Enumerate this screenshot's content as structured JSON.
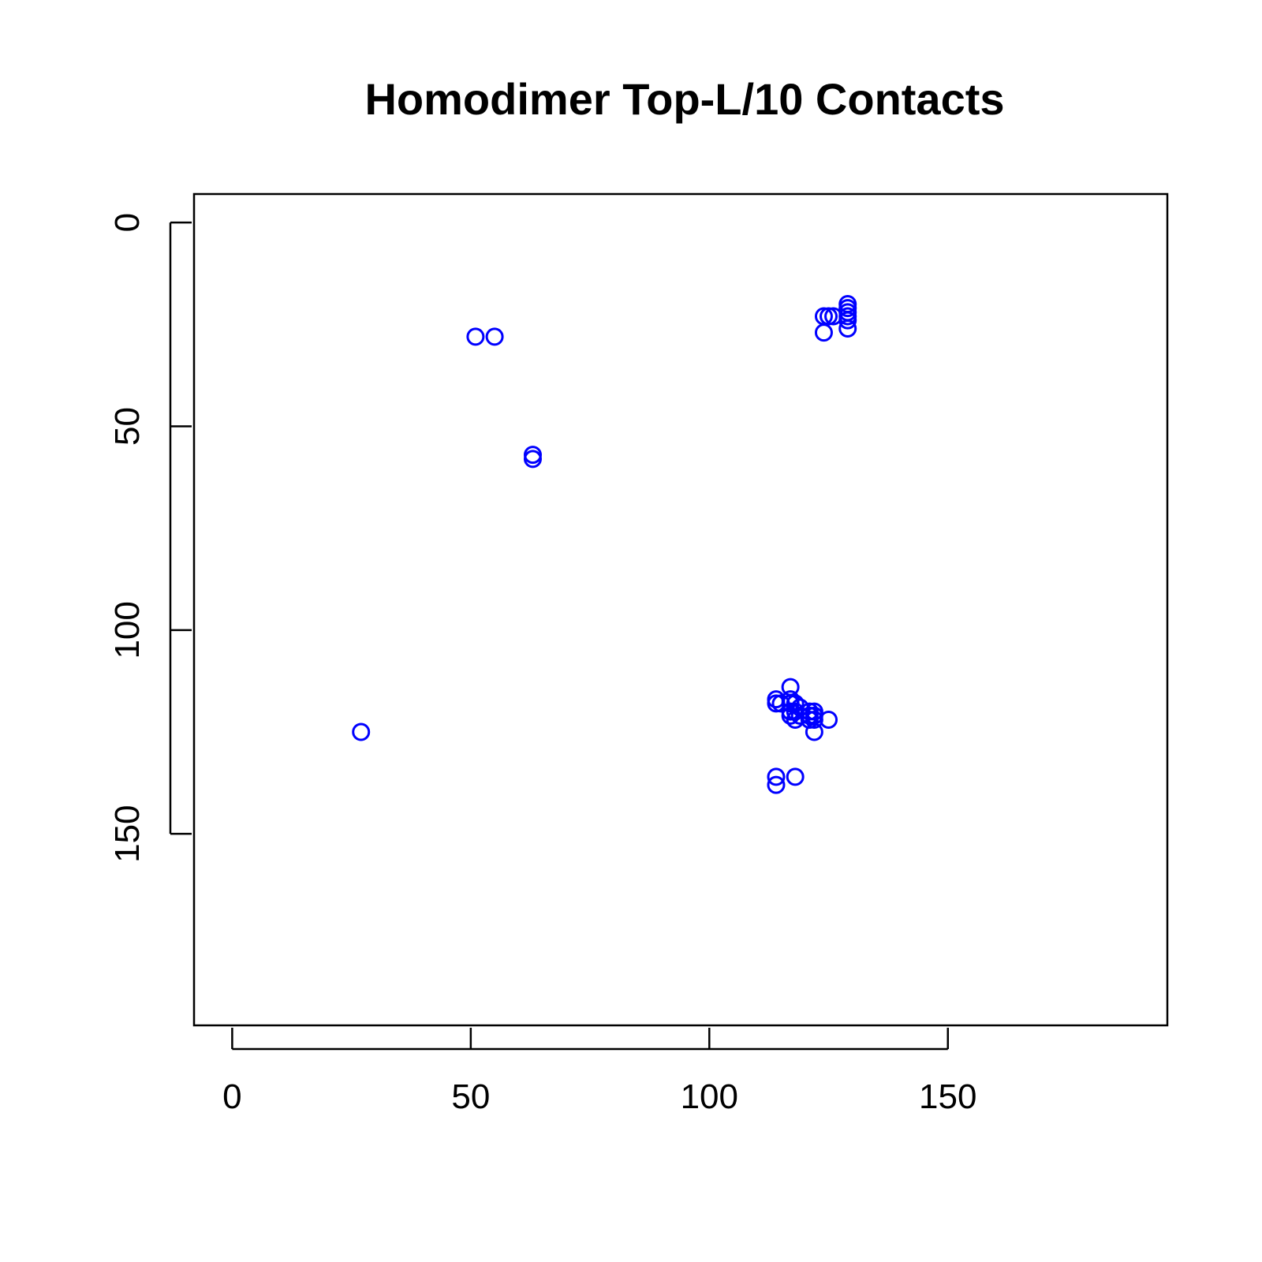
{
  "chart_data": {
    "type": "scatter",
    "title": "Homodimer Top-L/10 Contacts",
    "xlabel": "",
    "ylabel": "",
    "xlim": [
      -8,
      196
    ],
    "ylim": [
      -7,
      197
    ],
    "y_reversed": true,
    "x_ticks": [
      0,
      50,
      100,
      150
    ],
    "y_ticks": [
      0,
      50,
      100,
      150
    ],
    "marker": "open-circle",
    "colors": {
      "points": "#0000ff"
    },
    "series": [
      {
        "points": [
          [
            51,
            28
          ],
          [
            55,
            28
          ],
          [
            63,
            57
          ],
          [
            63,
            58
          ],
          [
            27,
            125
          ],
          [
            124,
            23
          ],
          [
            125,
            23
          ],
          [
            126,
            23
          ],
          [
            124,
            27
          ],
          [
            129,
            20
          ],
          [
            129,
            21
          ],
          [
            129,
            22
          ],
          [
            129,
            23
          ],
          [
            129,
            24
          ],
          [
            129,
            26
          ],
          [
            117,
            114
          ],
          [
            117,
            117
          ],
          [
            117,
            118
          ],
          [
            117,
            120
          ],
          [
            117,
            121
          ],
          [
            114,
            117
          ],
          [
            114,
            118
          ],
          [
            115,
            118
          ],
          [
            118,
            118
          ],
          [
            118,
            120
          ],
          [
            118,
            122
          ],
          [
            119,
            119
          ],
          [
            119,
            121
          ],
          [
            121,
            120
          ],
          [
            121,
            121
          ],
          [
            121,
            122
          ],
          [
            122,
            120
          ],
          [
            122,
            121
          ],
          [
            122,
            122
          ],
          [
            122,
            125
          ],
          [
            125,
            122
          ],
          [
            114,
            136
          ],
          [
            114,
            138
          ],
          [
            118,
            136
          ]
        ]
      }
    ]
  }
}
